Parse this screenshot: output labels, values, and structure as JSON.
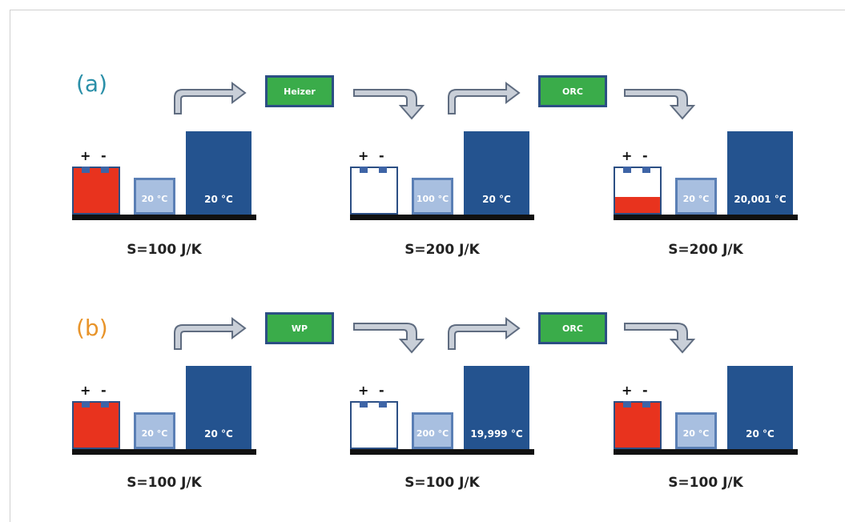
{
  "colors": {
    "battery_red": "#e8331e",
    "small_reservoir": "#a8bfe0",
    "big_reservoir": "#24538f",
    "device_green": "#3aac4a",
    "label_a": "#2a8fa8",
    "label_b": "#e8942a"
  },
  "battery_signs": {
    "plus": "+",
    "minus": "-"
  },
  "rows": [
    {
      "label": "(a)",
      "devices": [
        "Heizer",
        "ORC"
      ],
      "stages": [
        {
          "battery_charge": 1.0,
          "small_temp": "20 °C",
          "big_temp": "20 °C",
          "entropy": "S=100 J/K"
        },
        {
          "battery_charge": 0.0,
          "small_temp": "100 °C",
          "big_temp": "20 °C",
          "entropy": "S=200 J/K"
        },
        {
          "battery_charge": 0.35,
          "small_temp": "20 °C",
          "big_temp": "20,001 °C",
          "entropy": "S=200 J/K"
        }
      ]
    },
    {
      "label": "(b)",
      "devices": [
        "WP",
        "ORC"
      ],
      "stages": [
        {
          "battery_charge": 1.0,
          "small_temp": "20 °C",
          "big_temp": "20 °C",
          "entropy": "S=100 J/K"
        },
        {
          "battery_charge": 0.0,
          "small_temp": "200 °C",
          "big_temp": "19,999 °C",
          "entropy": "S=100 J/K"
        },
        {
          "battery_charge": 1.0,
          "small_temp": "20 °C",
          "big_temp": "20 °C",
          "entropy": "S=100 J/K"
        }
      ]
    }
  ]
}
